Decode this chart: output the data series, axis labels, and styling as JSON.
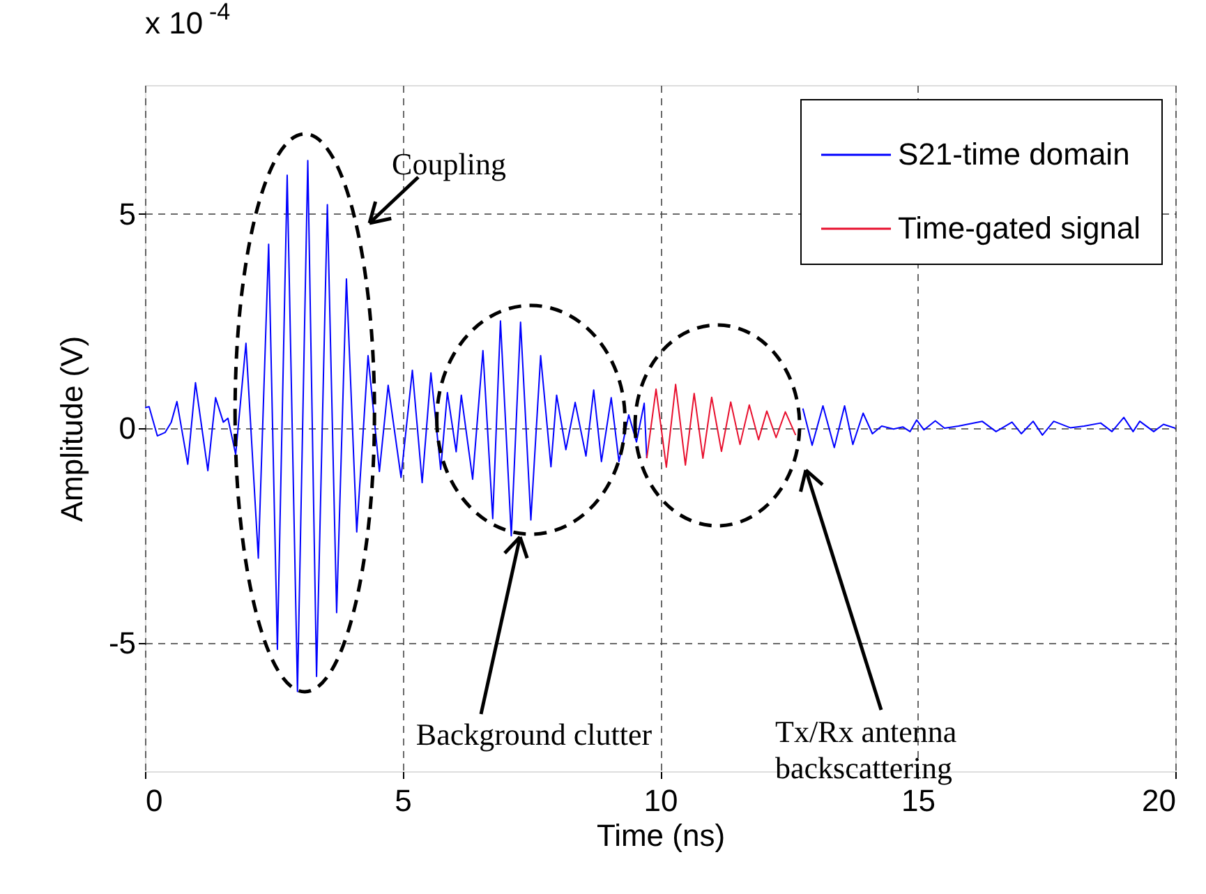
{
  "chart_data": {
    "type": "line",
    "xlabel": "Time (ns)",
    "ylabel": "Amplitude (V)",
    "xlim": [
      0,
      20
    ],
    "ylim": [
      -8,
      8
    ],
    "xticks": [
      0,
      5,
      10,
      15,
      20
    ],
    "yticks": [
      -5,
      0,
      5
    ],
    "grid": true,
    "legend": "top right",
    "marker": "none",
    "line_style": "solid",
    "annotations": [
      "x 10$^{-4}$",
      "Coupling",
      "Background clutter",
      "Tx/Rx antenna\nbackscattering"
    ],
    "series": [
      {
        "name": "S21-time domain",
        "color": "#0000ff",
        "x": [
          0,
          0.08,
          0.15,
          0.24,
          0.39,
          0.51,
          0.62,
          0.83,
          0.98,
          1.22,
          1.37,
          1.52,
          1.61,
          1.76,
          1.96,
          2.2,
          2.4,
          2.57,
          2.76,
          2.96,
          3.16,
          3.33,
          3.54,
          3.72,
          3.91,
          4.11,
          4.33,
          4.55,
          4.72,
          4.97,
          5.19,
          5.38,
          5.55,
          5.74,
          5.87,
          6.04,
          6.14,
          6.36,
          6.56,
          6.75,
          6.9,
          7.11,
          7.29,
          7.49,
          7.68,
          7.88,
          7.99,
          8.17,
          8.35,
          8.56,
          8.71,
          8.86,
          9.05,
          9.2,
          9.39,
          9.54,
          9.69,
          9.74,
          11,
          12.77,
          12.95,
          13.16,
          13.38,
          13.58,
          13.74,
          13.94,
          14.12,
          14.3,
          14.53,
          14.71,
          14.85,
          14.98,
          15.12,
          15.34,
          15.52,
          15.79,
          16.25,
          16.52,
          16.83,
          17.01,
          17.24,
          17.42,
          17.64,
          17.96,
          18.23,
          18.55,
          18.77,
          19.0,
          19.18,
          19.31,
          19.58,
          19.77,
          20
        ],
        "values": [
          0.48,
          0.5,
          0.2,
          -0.18,
          -0.1,
          0.14,
          0.62,
          -0.84,
          1.06,
          -0.99,
          0.71,
          0.14,
          0.23,
          -0.61,
          1.98,
          -3.03,
          4.29,
          -5.16,
          5.9,
          -6.14,
          6.24,
          -5.79,
          5.21,
          -4.3,
          3.48,
          -2.42,
          1.69,
          -1.01,
          1.0,
          -1.15,
          1.35,
          -1.27,
          1.29,
          -0.96,
          0.83,
          -0.55,
          0.77,
          -1.19,
          1.81,
          -2.11,
          2.5,
          -2.51,
          2.47,
          -2.14,
          1.69,
          -0.9,
          0.77,
          -0.5,
          0.6,
          -0.65,
          0.89,
          -0.78,
          0.71,
          -0.78,
          0.31,
          -0.32,
          0.58,
          -0.7,
          null,
          0.46,
          -0.4,
          0.52,
          -0.45,
          0.52,
          -0.38,
          0.35,
          -0.13,
          0.05,
          -0.02,
          0.03,
          -0.08,
          0.19,
          -0.04,
          0.17,
          0,
          0.05,
          0.16,
          -0.08,
          0.14,
          -0.13,
          0.16,
          -0.16,
          0.16,
          0.01,
          0.05,
          0.12,
          -0.08,
          0.25,
          -0.08,
          0.16,
          -0.08,
          0.09,
          0
        ]
      },
      {
        "name": "Time-gated signal",
        "color": "#e8102e",
        "x": [
          9.74,
          9.92,
          10.12,
          10.3,
          10.49,
          10.66,
          10.83,
          11.0,
          11.19,
          11.37,
          11.55,
          11.73,
          11.91,
          12.07,
          12.25,
          12.43,
          12.63
        ],
        "values": [
          -0.7,
          0.91,
          -0.91,
          1.02,
          -0.86,
          0.81,
          -0.7,
          0.72,
          -0.54,
          0.61,
          -0.38,
          0.54,
          -0.27,
          0.4,
          -0.22,
          0.38,
          -0.16
        ]
      }
    ]
  }
}
